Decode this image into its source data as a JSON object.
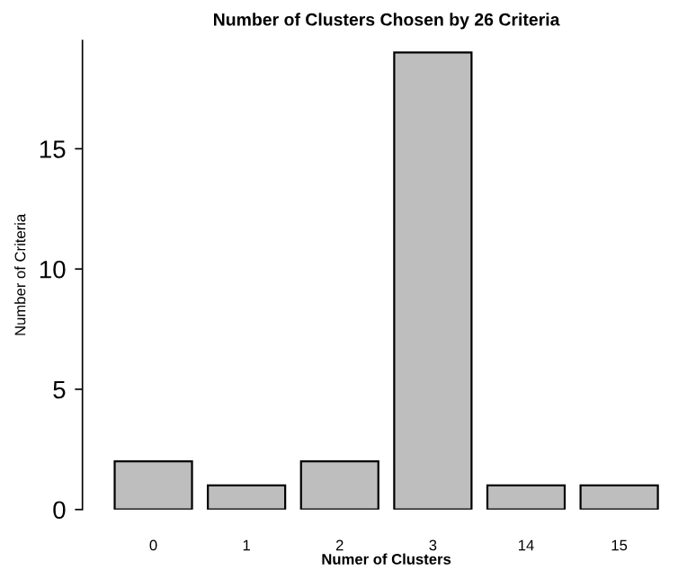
{
  "chart_data": {
    "type": "bar",
    "title": "Number of Clusters Chosen by 26 Criteria",
    "xlabel": "Numer of Clusters",
    "ylabel": "Number of Criteria",
    "categories": [
      "0",
      "1",
      "2",
      "3",
      "14",
      "15"
    ],
    "values": [
      2,
      1,
      2,
      19,
      1,
      1
    ],
    "color": "#bebebe",
    "ylim": [
      0,
      19.5
    ],
    "yticks": [
      0,
      5,
      10,
      15
    ],
    "grid": false,
    "legend": false
  }
}
